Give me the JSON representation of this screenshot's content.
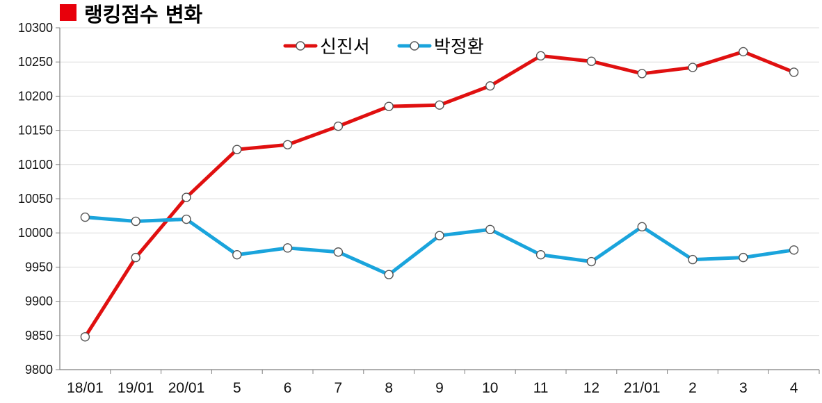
{
  "chart_data": {
    "type": "line",
    "title": "랭킹점수 변화",
    "categories": [
      "18/01",
      "19/01",
      "20/01",
      "5",
      "6",
      "7",
      "8",
      "9",
      "10",
      "11",
      "12",
      "21/01",
      "2",
      "3",
      "4"
    ],
    "ylim": [
      9800,
      10300
    ],
    "yticks": [
      9800,
      9850,
      9900,
      9950,
      10000,
      10050,
      10100,
      10150,
      10200,
      10250,
      10300
    ],
    "grid": true,
    "legend": "top-center",
    "series": [
      {
        "name": "신진서",
        "color": "#e01010",
        "values": [
          9848,
          9964,
          10052,
          10122,
          10129,
          10156,
          10185,
          10187,
          10215,
          10259,
          10251,
          10233,
          10242,
          10265,
          10235
        ]
      },
      {
        "name": "박정환",
        "color": "#1aa4dc",
        "values": [
          10023,
          10017,
          10020,
          9968,
          9978,
          9972,
          9939,
          9996,
          10005,
          9968,
          9958,
          10009,
          9961,
          9964,
          9975
        ]
      }
    ],
    "title_marker_color": "#e8000b"
  }
}
